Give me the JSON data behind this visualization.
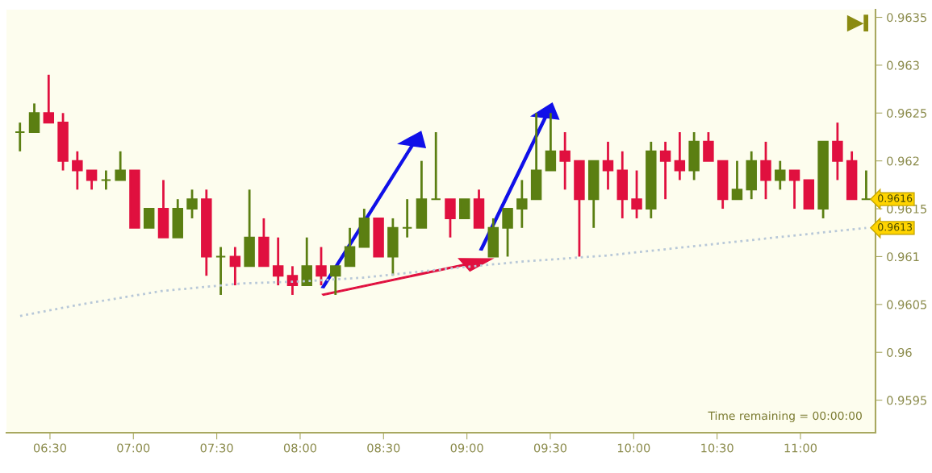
{
  "chart_data": {
    "type": "candlestick",
    "x": [
      6.32,
      6.406,
      6.492,
      6.578,
      6.664,
      6.75,
      6.836,
      6.922,
      7.008,
      7.094,
      7.18,
      7.266,
      7.352,
      7.438,
      7.524,
      7.61,
      7.696,
      7.782,
      7.868,
      7.954,
      8.04,
      8.126,
      8.212,
      8.298,
      8.384,
      8.47,
      8.556,
      8.642,
      8.728,
      8.814,
      8.9,
      8.986,
      9.072,
      9.158,
      9.244,
      9.33,
      9.416,
      9.502,
      9.588,
      9.674,
      9.76,
      9.846,
      9.932,
      10.018,
      10.104,
      10.19,
      10.276,
      10.362,
      10.448,
      10.534,
      10.62,
      10.706,
      10.792,
      10.878,
      10.964,
      11.05,
      11.136,
      11.222,
      11.308,
      11.394
    ],
    "ohlc": [
      [
        0.9623,
        0.9624,
        0.9621,
        0.9623
      ],
      [
        0.9623,
        0.9626,
        0.9623,
        0.9625
      ],
      [
        0.9625,
        0.9629,
        0.9624,
        0.9624
      ],
      [
        0.9624,
        0.9625,
        0.9619,
        0.962
      ],
      [
        0.962,
        0.9621,
        0.9617,
        0.9619
      ],
      [
        0.9619,
        0.9619,
        0.9617,
        0.9618
      ],
      [
        0.9618,
        0.9619,
        0.9617,
        0.9618
      ],
      [
        0.9618,
        0.9621,
        0.9618,
        0.9619
      ],
      [
        0.9619,
        0.9619,
        0.9613,
        0.9613
      ],
      [
        0.9613,
        0.9615,
        0.9613,
        0.9615
      ],
      [
        0.9615,
        0.9618,
        0.9612,
        0.9612
      ],
      [
        0.9612,
        0.9616,
        0.9612,
        0.9615
      ],
      [
        0.9615,
        0.9617,
        0.9614,
        0.9616
      ],
      [
        0.9616,
        0.9617,
        0.9608,
        0.961
      ],
      [
        0.961,
        0.9611,
        0.9606,
        0.961
      ],
      [
        0.961,
        0.9611,
        0.9607,
        0.9609
      ],
      [
        0.9609,
        0.9617,
        0.9609,
        0.9612
      ],
      [
        0.9612,
        0.9614,
        0.9609,
        0.9609
      ],
      [
        0.9609,
        0.9612,
        0.9607,
        0.9608
      ],
      [
        0.9608,
        0.9609,
        0.9606,
        0.9607
      ],
      [
        0.9607,
        0.9612,
        0.9607,
        0.9609
      ],
      [
        0.9609,
        0.9611,
        0.9607,
        0.9608
      ],
      [
        0.9608,
        0.9609,
        0.9606,
        0.9609
      ],
      [
        0.9609,
        0.9613,
        0.9609,
        0.9611
      ],
      [
        0.9611,
        0.9615,
        0.9611,
        0.9614
      ],
      [
        0.9614,
        0.9614,
        0.961,
        0.961
      ],
      [
        0.961,
        0.9614,
        0.9608,
        0.9613
      ],
      [
        0.9613,
        0.9616,
        0.9612,
        0.9613
      ],
      [
        0.9613,
        0.962,
        0.9613,
        0.9616
      ],
      [
        0.9616,
        0.9623,
        0.9616,
        0.9616
      ],
      [
        0.9616,
        0.9616,
        0.9612,
        0.9614
      ],
      [
        0.9614,
        0.9616,
        0.9614,
        0.9616
      ],
      [
        0.9616,
        0.9617,
        0.9613,
        0.9613
      ],
      [
        0.961,
        0.9614,
        0.961,
        0.9613
      ],
      [
        0.9613,
        0.9615,
        0.961,
        0.9615
      ],
      [
        0.9615,
        0.9618,
        0.9613,
        0.9616
      ],
      [
        0.9616,
        0.9625,
        0.9616,
        0.9619
      ],
      [
        0.9619,
        0.9625,
        0.9619,
        0.9621
      ],
      [
        0.9621,
        0.9623,
        0.9617,
        0.962
      ],
      [
        0.962,
        0.962,
        0.961,
        0.9616
      ],
      [
        0.9616,
        0.962,
        0.9613,
        0.962
      ],
      [
        0.962,
        0.9622,
        0.9617,
        0.9619
      ],
      [
        0.9619,
        0.9621,
        0.9614,
        0.9616
      ],
      [
        0.9616,
        0.9619,
        0.9614,
        0.9615
      ],
      [
        0.9615,
        0.9622,
        0.9614,
        0.9621
      ],
      [
        0.9621,
        0.9622,
        0.9616,
        0.962
      ],
      [
        0.962,
        0.9623,
        0.9618,
        0.9619
      ],
      [
        0.9619,
        0.9623,
        0.9618,
        0.9622
      ],
      [
        0.9622,
        0.9623,
        0.962,
        0.962
      ],
      [
        0.962,
        0.962,
        0.9615,
        0.9616
      ],
      [
        0.9616,
        0.962,
        0.9616,
        0.9617
      ],
      [
        0.9617,
        0.9621,
        0.9616,
        0.962
      ],
      [
        0.962,
        0.9622,
        0.9616,
        0.9618
      ],
      [
        0.9618,
        0.962,
        0.9617,
        0.9619
      ],
      [
        0.9619,
        0.9619,
        0.9615,
        0.9618
      ],
      [
        0.9618,
        0.9618,
        0.9615,
        0.9615
      ],
      [
        0.9615,
        0.9622,
        0.9614,
        0.9622
      ],
      [
        0.9622,
        0.9624,
        0.9618,
        0.962
      ],
      [
        0.962,
        0.9621,
        0.9616,
        0.9616
      ],
      [
        0.9616,
        0.9619,
        0.9616,
        0.9616
      ]
    ],
    "colors": [
      "#5b7f12",
      "#5b7f12",
      "#e0103f",
      "#e0103f",
      "#e0103f",
      "#e0103f",
      "#5b7f12",
      "#5b7f12",
      "#e0103f",
      "#5b7f12",
      "#e0103f",
      "#5b7f12",
      "#5b7f12",
      "#e0103f",
      "#5b7f12",
      "#e0103f",
      "#5b7f12",
      "#e0103f",
      "#e0103f",
      "#e0103f",
      "#5b7f12",
      "#e0103f",
      "#5b7f12",
      "#5b7f12",
      "#5b7f12",
      "#e0103f",
      "#5b7f12",
      "#5b7f12",
      "#5b7f12",
      "#5b7f12",
      "#e0103f",
      "#5b7f12",
      "#e0103f",
      "#5b7f12",
      "#5b7f12",
      "#5b7f12",
      "#5b7f12",
      "#5b7f12",
      "#e0103f",
      "#e0103f",
      "#5b7f12",
      "#e0103f",
      "#e0103f",
      "#e0103f",
      "#5b7f12",
      "#e0103f",
      "#e0103f",
      "#5b7f12",
      "#e0103f",
      "#e0103f",
      "#5b7f12",
      "#5b7f12",
      "#e0103f",
      "#5b7f12",
      "#e0103f",
      "#e0103f",
      "#5b7f12",
      "#e0103f",
      "#e0103f",
      "#5b7f12"
    ],
    "series": [
      {
        "type": "line",
        "color": "#b8c8d8",
        "line_style": "dotted",
        "x": [
          6.321,
          6.684,
          7.168,
          7.652,
          8.0,
          8.378,
          8.862,
          9.346,
          9.83,
          10.314,
          10.798,
          11.394
        ],
        "values": [
          0.96038,
          0.9605,
          0.96064,
          0.96072,
          0.96074,
          0.96078,
          0.96087,
          0.96095,
          0.96101,
          0.9611,
          0.96119,
          0.9613
        ]
      }
    ],
    "xlim": [
      6.239,
      11.45
    ],
    "xticks": [
      {
        "value": 6.5,
        "label": "06:30"
      },
      {
        "value": 7.0,
        "label": "07:00"
      },
      {
        "value": 7.5,
        "label": "07:30"
      },
      {
        "value": 8.0,
        "label": "08:00"
      },
      {
        "value": 8.5,
        "label": "08:30"
      },
      {
        "value": 9.0,
        "label": "09:00"
      },
      {
        "value": 9.5,
        "label": "09:30"
      },
      {
        "value": 10.0,
        "label": "10:00"
      },
      {
        "value": 10.5,
        "label": "10:30"
      },
      {
        "value": 11.0,
        "label": "11:00"
      }
    ],
    "ylim": [
      0.95916,
      0.96358
    ],
    "yticks": [
      0.9595,
      0.96,
      0.9605,
      0.961,
      0.9615,
      0.962,
      0.9625,
      0.963,
      0.9635
    ],
    "grid": false,
    "annotations": [
      "Time remaining = 00:00:00",
      {
        "text": "0.9616",
        "x": 11.394,
        "y": 0.9616
      },
      {
        "text": "0.9613",
        "x": 11.394,
        "y": 0.9613
      }
    ]
  }
}
